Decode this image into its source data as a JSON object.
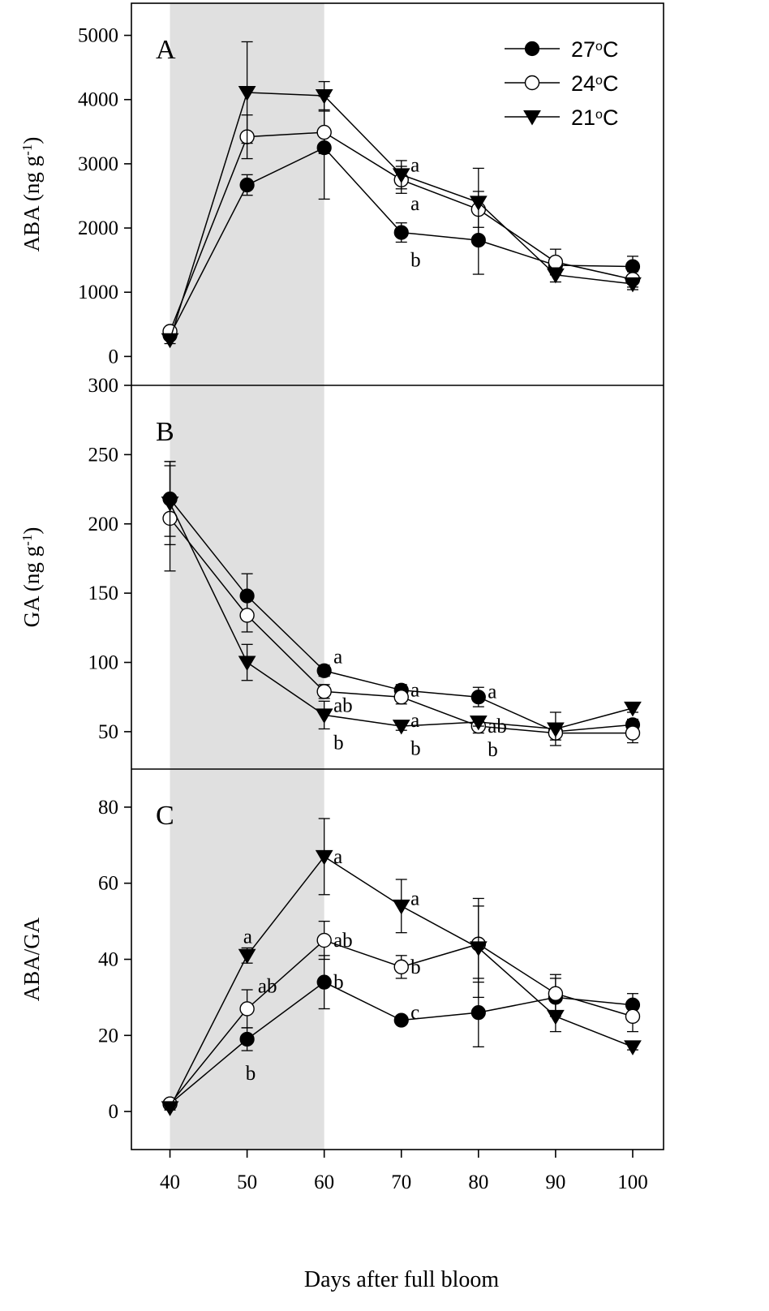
{
  "figure": {
    "xlabel": "Days after full bloom",
    "x_ticks": [
      40,
      50,
      60,
      70,
      80,
      90,
      100
    ],
    "x_range": [
      35,
      104
    ],
    "shaded_region": [
      40,
      60
    ],
    "legend": [
      {
        "label_main": "27",
        "label_sup": "o",
        "label_tail": "C",
        "marker": "filled-circle"
      },
      {
        "label_main": "24",
        "label_sup": "o",
        "label_tail": "C",
        "marker": "open-circle"
      },
      {
        "label_main": "21",
        "label_sup": "o",
        "label_tail": "C",
        "marker": "filled-triangle-down"
      }
    ],
    "legend_position": "top-right of panel A"
  },
  "chart_data": [
    {
      "type": "line",
      "panel": "A",
      "ylabel_main": "ABA (ng g",
      "ylabel_sup": "-1",
      "ylabel_tail": ")",
      "ylim": [
        -450,
        5500
      ],
      "y_ticks": [
        0,
        1000,
        2000,
        3000,
        4000,
        5000
      ],
      "x": [
        40,
        50,
        60,
        70,
        80,
        90,
        100
      ],
      "series": [
        {
          "name": "27°C",
          "marker": "filled-circle",
          "values": [
            330,
            2670,
            3250,
            1930,
            1810,
            1420,
            1400
          ],
          "errors": [
            60,
            160,
            800,
            150,
            530,
            110,
            160
          ]
        },
        {
          "name": "24°C",
          "marker": "open-circle",
          "values": [
            390,
            3420,
            3490,
            2750,
            2290,
            1470,
            1200
          ],
          "errors": [
            60,
            340,
            330,
            210,
            280,
            200,
            120
          ]
        },
        {
          "name": "21°C",
          "marker": "filled-triangle-down",
          "values": [
            260,
            4110,
            4060,
            2830,
            2400,
            1270,
            1130
          ],
          "errors": [
            60,
            790,
            220,
            220,
            530,
            110,
            90
          ]
        }
      ],
      "annotations": [
        {
          "text": "a",
          "x": 71.2,
          "y": 2980
        },
        {
          "text": "a",
          "x": 71.2,
          "y": 2380
        },
        {
          "text": "b",
          "x": 71.2,
          "y": 1500
        }
      ]
    },
    {
      "type": "line",
      "panel": "B",
      "ylabel_main": "GA (ng g",
      "ylabel_sup": "-1",
      "ylabel_tail": ")",
      "ylim": [
        23,
        300
      ],
      "y_ticks": [
        50,
        100,
        150,
        200,
        250,
        300
      ],
      "x": [
        40,
        50,
        60,
        70,
        80,
        90,
        100
      ],
      "series": [
        {
          "name": "27°C",
          "marker": "filled-circle",
          "values": [
            218,
            148,
            94,
            80,
            75,
            50,
            55
          ],
          "errors": [
            27,
            16,
            4,
            4,
            7,
            4,
            4
          ]
        },
        {
          "name": "24°C",
          "marker": "open-circle",
          "values": [
            204,
            134,
            79,
            75,
            54,
            49,
            49
          ],
          "errors": [
            38,
            12,
            5,
            5,
            5,
            5,
            7
          ]
        },
        {
          "name": "21°C",
          "marker": "filled-triangle-down",
          "values": [
            215,
            100,
            62,
            54,
            57,
            52,
            67
          ],
          "errors": [
            30,
            13,
            10,
            3,
            3,
            12,
            3
          ]
        }
      ],
      "annotations": [
        {
          "text": "a",
          "x": 61.2,
          "y": 104
        },
        {
          "text": "ab",
          "x": 61.2,
          "y": 69
        },
        {
          "text": "b",
          "x": 61.2,
          "y": 42
        },
        {
          "text": "a",
          "x": 71.2,
          "y": 80
        },
        {
          "text": "a",
          "x": 71.2,
          "y": 58
        },
        {
          "text": "b",
          "x": 71.2,
          "y": 38
        },
        {
          "text": "a",
          "x": 81.2,
          "y": 79
        },
        {
          "text": "ab",
          "x": 81.2,
          "y": 54
        },
        {
          "text": "b",
          "x": 81.2,
          "y": 37
        }
      ]
    },
    {
      "type": "line",
      "panel": "C",
      "ylabel_main": "ABA/GA",
      "ylabel_sup": "",
      "ylabel_tail": "",
      "ylim": [
        -10,
        90
      ],
      "y_ticks": [
        0,
        20,
        40,
        60,
        80
      ],
      "x": [
        40,
        50,
        60,
        70,
        80,
        90,
        100
      ],
      "series": [
        {
          "name": "27°C",
          "marker": "filled-circle",
          "values": [
            2,
            19,
            34,
            24,
            26,
            30,
            28
          ],
          "errors": [
            0.6,
            3,
            7,
            0.8,
            9,
            5,
            3
          ]
        },
        {
          "name": "24°C",
          "marker": "open-circle",
          "values": [
            2,
            27,
            45,
            38,
            44,
            31,
            25
          ],
          "errors": [
            0.6,
            5,
            5,
            3,
            10,
            5,
            4
          ]
        },
        {
          "name": "21°C",
          "marker": "filled-triangle-down",
          "values": [
            1,
            41,
            67,
            54,
            43,
            25,
            17
          ],
          "errors": [
            0.6,
            2,
            10,
            7,
            13,
            4,
            0.8
          ]
        }
      ],
      "annotations": [
        {
          "text": "a",
          "x": 61.2,
          "y": 67
        },
        {
          "text": "ab",
          "x": 61.2,
          "y": 45
        },
        {
          "text": "b",
          "x": 61.2,
          "y": 34
        },
        {
          "text": "a",
          "x": 49.5,
          "y": 46
        },
        {
          "text": "ab",
          "x": 51.4,
          "y": 33
        },
        {
          "text": "b",
          "x": 49.8,
          "y": 10
        },
        {
          "text": "a",
          "x": 71.2,
          "y": 56
        },
        {
          "text": "b",
          "x": 71.2,
          "y": 38
        },
        {
          "text": "c",
          "x": 71.2,
          "y": 26
        }
      ]
    }
  ]
}
